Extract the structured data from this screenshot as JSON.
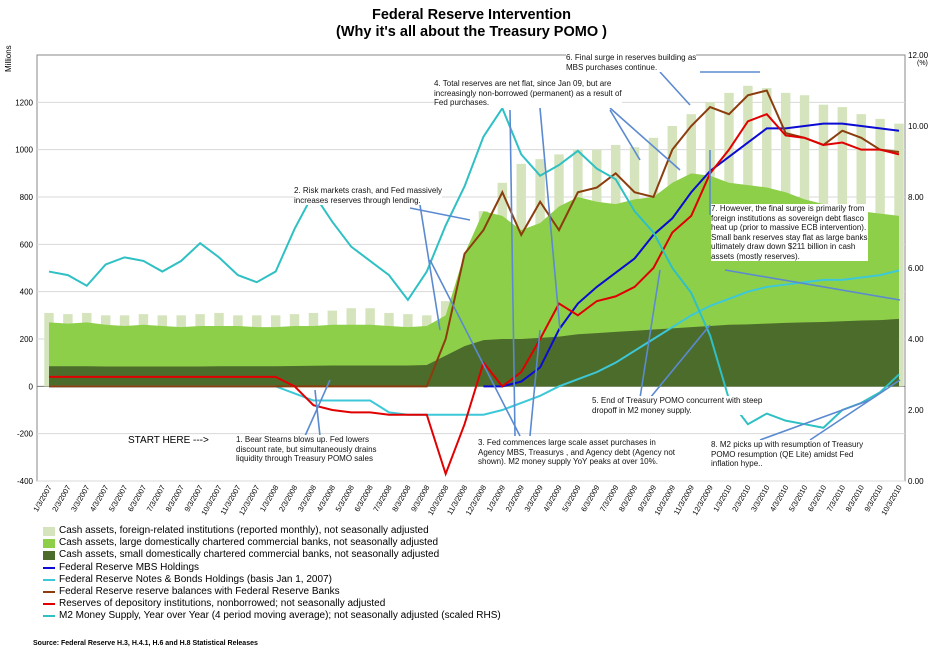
{
  "chart_data": {
    "type": "line",
    "title": "Federal Reserve Intervention",
    "subtitle": "(Why it's all about the Treasury POMO )",
    "ylabel": "Millions",
    "ylabel_right": "(%)",
    "ylim": [
      -400,
      1400
    ],
    "ylim_right": [
      0,
      12
    ],
    "yticks": [
      "-400",
      "-200",
      "0",
      "200",
      "400",
      "600",
      "800",
      "1000",
      "1200"
    ],
    "yticks_right": [
      "0.00",
      "2.00",
      "4.00",
      "6.00",
      "8.00",
      "10.00",
      "12.00"
    ],
    "categories": [
      "1/3/2007",
      "2/3/2007",
      "3/3/2007",
      "4/3/2007",
      "5/3/2007",
      "6/3/2007",
      "7/3/2007",
      "8/3/2007",
      "9/3/2007",
      "10/3/2007",
      "11/3/2007",
      "12/3/2007",
      "1/3/2008",
      "2/3/2008",
      "3/3/2008",
      "4/3/2008",
      "5/3/2008",
      "6/3/2008",
      "7/3/2008",
      "8/3/2008",
      "9/3/2008",
      "10/3/2008",
      "11/3/2008",
      "12/3/2008",
      "1/3/2009",
      "2/3/2009",
      "3/3/2009",
      "4/3/2009",
      "5/3/2009",
      "6/3/2009",
      "7/3/2009",
      "8/3/2009",
      "9/3/2009",
      "10/3/2009",
      "11/3/2009",
      "12/3/2009",
      "1/3/2010",
      "2/3/2010",
      "3/3/2010",
      "4/3/2010",
      "5/3/2010",
      "6/3/2010",
      "7/3/2010",
      "8/3/2010",
      "9/3/2010",
      "10/3/2010"
    ],
    "series": [
      {
        "name": "Cash assets, foreign-related institutions (reported monthly), not seasonally adjusted",
        "kind": "bar",
        "color": "#d5e4bd",
        "values": [
          310,
          305,
          310,
          300,
          300,
          305,
          300,
          300,
          305,
          310,
          300,
          300,
          300,
          305,
          310,
          320,
          330,
          330,
          310,
          305,
          300,
          360,
          500,
          740,
          860,
          940,
          960,
          980,
          1000,
          1000,
          1020,
          1010,
          1050,
          1100,
          1150,
          1200,
          1240,
          1270,
          1260,
          1240,
          1230,
          1190,
          1180,
          1150,
          1130,
          1110
        ]
      },
      {
        "name": "Cash assets, large domestically chartered commercial banks, not seasonally adjusted",
        "kind": "area",
        "color": "#8ecf4a",
        "values": [
          270,
          265,
          270,
          260,
          255,
          260,
          255,
          250,
          255,
          255,
          255,
          250,
          250,
          255,
          255,
          260,
          260,
          260,
          255,
          250,
          255,
          300,
          560,
          740,
          720,
          660,
          690,
          760,
          800,
          780,
          770,
          790,
          800,
          860,
          900,
          890,
          860,
          850,
          840,
          820,
          790,
          770,
          750,
          740,
          730,
          720
        ]
      },
      {
        "name": "Cash assets, small domestically chartered commercial banks, not seasonally adjusted",
        "kind": "area",
        "color": "#4c6c2c",
        "values": [
          85,
          85,
          85,
          84,
          84,
          84,
          84,
          84,
          84,
          85,
          85,
          85,
          85,
          86,
          87,
          88,
          88,
          88,
          88,
          88,
          90,
          130,
          170,
          195,
          200,
          200,
          205,
          210,
          220,
          225,
          230,
          235,
          240,
          245,
          250,
          255,
          260,
          262,
          265,
          268,
          270,
          272,
          275,
          278,
          280,
          285
        ]
      },
      {
        "name": "Federal Reserve MBS Holdings",
        "color": "#0b0bd4",
        "values": [
          null,
          null,
          null,
          null,
          null,
          null,
          null,
          null,
          null,
          null,
          null,
          null,
          null,
          null,
          null,
          null,
          null,
          null,
          null,
          null,
          null,
          null,
          null,
          0,
          0,
          20,
          80,
          240,
          350,
          420,
          480,
          540,
          640,
          710,
          820,
          910,
          970,
          1030,
          1090,
          1090,
          1100,
          1110,
          1110,
          1100,
          1090,
          1080
        ]
      },
      {
        "name": "Federal Reserve Notes & Bonds Holdings (basis Jan 1, 2007)",
        "color": "#3cc8d8",
        "values": [
          0,
          0,
          0,
          0,
          0,
          0,
          0,
          0,
          0,
          0,
          0,
          0,
          0,
          -30,
          -60,
          -60,
          -60,
          -60,
          -110,
          -120,
          -120,
          -120,
          -120,
          -120,
          -100,
          -70,
          -40,
          0,
          30,
          60,
          100,
          150,
          200,
          250,
          300,
          340,
          370,
          400,
          420,
          430,
          440,
          450,
          450,
          460,
          470,
          490
        ]
      },
      {
        "name": "Federal Reserve reserve balances with Federal Reserve Banks",
        "color": "#8b3d0e",
        "values": [
          0,
          0,
          0,
          0,
          0,
          0,
          0,
          0,
          0,
          0,
          0,
          0,
          0,
          0,
          0,
          0,
          0,
          0,
          0,
          0,
          0,
          200,
          560,
          660,
          820,
          640,
          780,
          660,
          820,
          840,
          900,
          820,
          800,
          1000,
          1100,
          1180,
          1150,
          1230,
          1250,
          1070,
          1050,
          1020,
          1080,
          1050,
          1000,
          990
        ]
      },
      {
        "name": "Reserves of depository institutions, nonborrowed; not seasonally adjusted",
        "color": "#e00000",
        "values": [
          40,
          40,
          40,
          40,
          40,
          40,
          40,
          40,
          40,
          40,
          40,
          40,
          40,
          0,
          -80,
          -100,
          -110,
          -110,
          -120,
          -120,
          -120,
          -370,
          -160,
          100,
          0,
          60,
          200,
          350,
          300,
          360,
          380,
          420,
          500,
          650,
          720,
          900,
          1000,
          1120,
          1150,
          1060,
          1050,
          1020,
          1030,
          1000,
          1000,
          980
        ]
      },
      {
        "name": "M2 Money Supply, Year over Year (4 period moving average); not seasonally adjusted (scaled RHS)",
        "color": "#2fc0c4",
        "axis": "right",
        "values": [
          5.9,
          5.8,
          5.5,
          6.1,
          6.3,
          6.2,
          5.9,
          6.2,
          6.7,
          6.3,
          5.8,
          5.6,
          5.9,
          7.1,
          8.1,
          7.3,
          6.6,
          6.2,
          5.8,
          5.1,
          5.9,
          7.2,
          8.3,
          9.7,
          10.5,
          9.2,
          8.6,
          8.9,
          9.3,
          8.8,
          8.5,
          7.6,
          7.0,
          6.0,
          5.3,
          4.1,
          2.3,
          1.6,
          1.9,
          1.7,
          1.6,
          1.5,
          2.0,
          2.2,
          2.5,
          3.0
        ]
      }
    ]
  },
  "annotations": {
    "a1": "1.  Bear Stearns blows up.  Fed lowers\ndiscount rate, but simultaneously drains\nliquidity through Treasury POMO sales",
    "a2": "2. Risk markets crash, and Fed massively\nincreases reserves through lending.",
    "a3": "3. Fed commences large scale asset purchases in\nAgency MBS, Treasurys , and Agency debt (Agency not\nshown).  M2 money supply YoY peaks at over 10%.",
    "a4": "4.  Total reserves are net flat, since Jan 09, but are\nincreasingly non-borrowed (permanent) as a result of\nFed purchases.",
    "a5": "5. End of Treasury POMO concurrent with steep\ndropoff in M2 money supply.",
    "a6": "6.  Final surge in reserves building  as\nMBS purchases continue.",
    "a7": "7. However, the final surge is primarily from\nforeign institutions   as sovereign debt fiasco\nheat up (prior to massive ECB intervention).\nSmall bank reserves stay flat as large banks\nultimately  draw down $211 billion in cash\nassets (mostly reserves).",
    "a8": "8. M2 picks up with resumption  of Treasury\nPOMO resumption (QE Lite) amidst Fed\ninflation hype..",
    "start": "START HERE --->"
  },
  "source": "Source: Federal Reserve H.3, H.4.1, H.6 and H.8 Statistical Releases"
}
